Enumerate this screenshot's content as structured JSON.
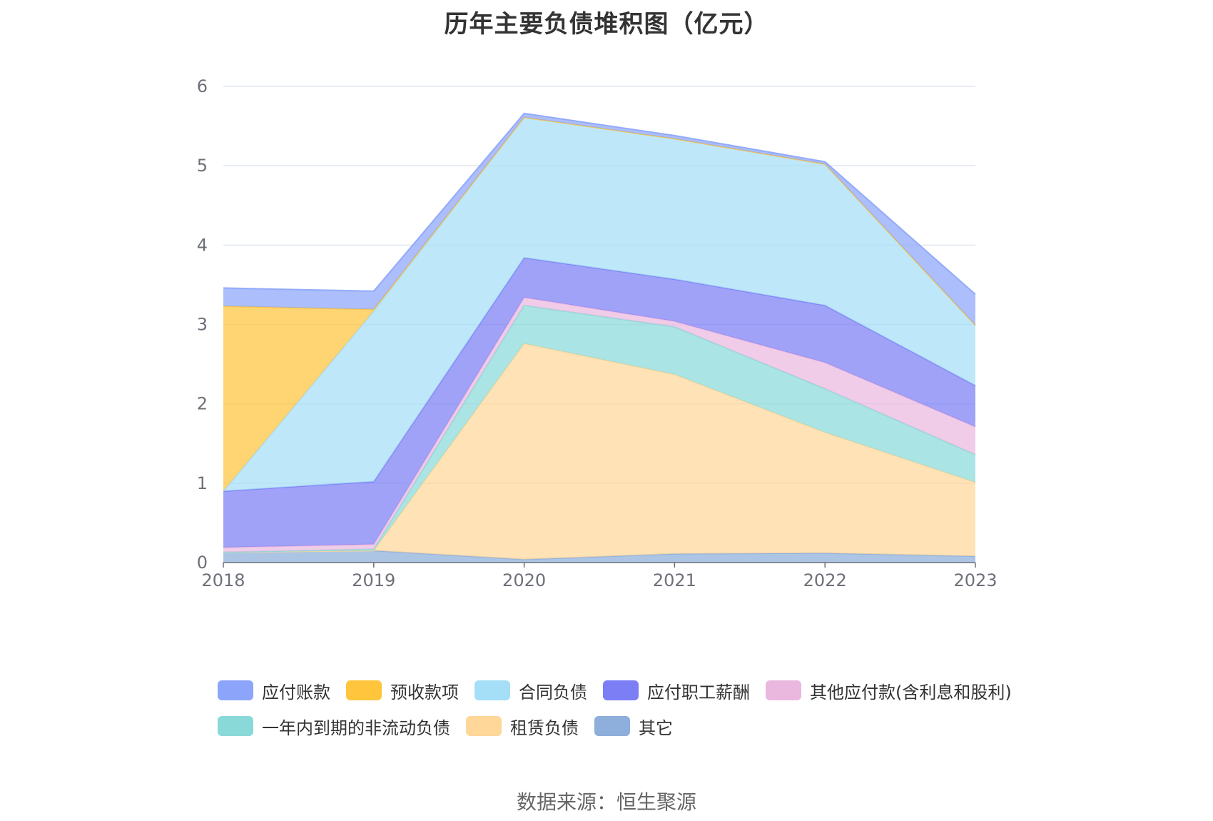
{
  "chart_data": {
    "type": "area",
    "stacked": true,
    "title": "历年主要负债堆积图（亿元）",
    "x": [
      "2018",
      "2019",
      "2020",
      "2021",
      "2022",
      "2023"
    ],
    "ylim": [
      0,
      6
    ],
    "yticks": [
      "0",
      "1",
      "2",
      "3",
      "4",
      "5",
      "6"
    ],
    "grid": true,
    "legend_position": "bottom",
    "series": [
      {
        "name": "其它",
        "color": "#8eaedb",
        "values": [
          0.13,
          0.15,
          0.04,
          0.11,
          0.12,
          0.08
        ]
      },
      {
        "name": "租赁负债",
        "color": "#ffd799",
        "values": [
          0,
          0,
          2.72,
          2.26,
          1.52,
          0.93
        ]
      },
      {
        "name": "一年内到期的非流动负债",
        "color": "#8ad9d9",
        "values": [
          0,
          0.02,
          0.48,
          0.6,
          0.55,
          0.35
        ]
      },
      {
        "name": "其他应付款(含利息和股利)",
        "color": "#eab8df",
        "values": [
          0.06,
          0.06,
          0.1,
          0.07,
          0.33,
          0.35
        ]
      },
      {
        "name": "应付职工薪酬",
        "color": "#7b7ef5",
        "values": [
          0.71,
          0.79,
          0.5,
          0.53,
          0.72,
          0.52
        ]
      },
      {
        "name": "合同负债",
        "color": "#a5def7",
        "values": [
          0,
          2.15,
          1.77,
          1.77,
          1.78,
          0.76
        ]
      },
      {
        "name": "预收款项",
        "color": "#ffc53d",
        "values": [
          2.33,
          0.02,
          0,
          0,
          0,
          0
        ]
      },
      {
        "name": "应付账款",
        "color": "#8ca5fa",
        "values": [
          0.23,
          0.23,
          0.05,
          0.04,
          0.03,
          0.39
        ]
      }
    ],
    "legend_order": [
      "应付账款",
      "预收款项",
      "合同负债",
      "应付职工薪酬",
      "其他应付款(含利息和股利)",
      "一年内到期的非流动负债",
      "租赁负债",
      "其它"
    ]
  },
  "source_text": "数据来源：恒生聚源"
}
